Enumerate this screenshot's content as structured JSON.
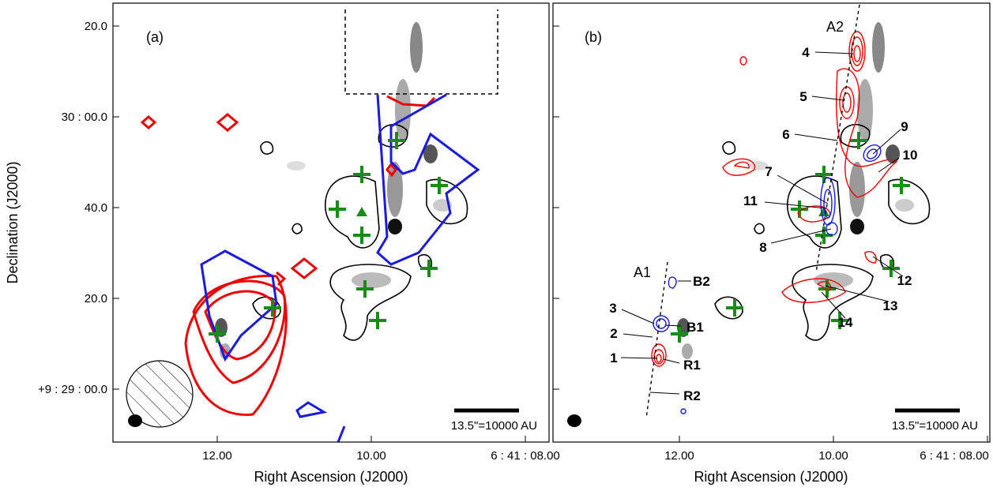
{
  "figure": {
    "y_axis_label": "Declination (J2000)",
    "yticks": [
      "20.0",
      "30 : 00.0",
      "40.0",
      "20.0",
      "+9 : 29 : 00.0"
    ],
    "panels": [
      {
        "label": "(a)",
        "x_axis_label": "Right Ascension (J2000)",
        "xticks": [
          "12.00",
          "10.00",
          "6 : 41 : 08.00"
        ],
        "scale_bar": "13.5\"=10000 AU"
      },
      {
        "label": "(b)",
        "x_axis_label": "Right Ascension (J2000)",
        "xticks": [
          "12.00",
          "10.00",
          "6 : 41 : 08.00"
        ],
        "scale_bar": "13.5\"=10000 AU",
        "annotations": [
          "A2",
          "4",
          "5",
          "6",
          "9",
          "10",
          "7",
          "11",
          "8",
          "12",
          "13",
          "14",
          "A1",
          "B2",
          "3",
          "B1",
          "2",
          "1",
          "R1",
          "R2"
        ]
      }
    ]
  }
}
